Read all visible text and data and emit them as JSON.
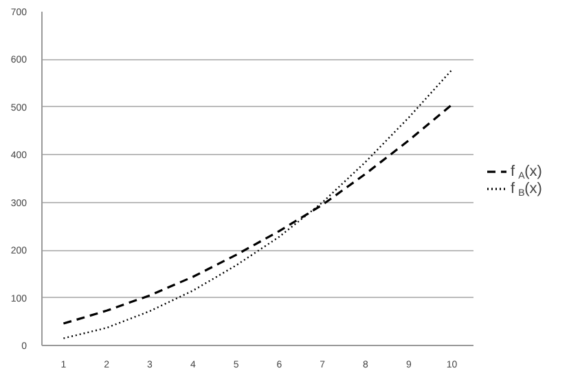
{
  "chart_data": {
    "type": "line",
    "categories": [
      "1",
      "2",
      "3",
      "4",
      "5",
      "6",
      "7",
      "8",
      "9",
      "10"
    ],
    "series": [
      {
        "name": "f$_{A}$(x)",
        "color": "#000000",
        "line_style": "dashed",
        "values": [
          46,
          73,
          105,
          144,
          190,
          240,
          295,
          360,
          430,
          505
        ]
      },
      {
        "name": "f$_{B}$(x)",
        "color": "#000000",
        "line_style": "dotted",
        "values": [
          15,
          37,
          72,
          115,
          168,
          228,
          300,
          385,
          478,
          578
        ]
      }
    ],
    "ylim": [
      0,
      700
    ],
    "yticks": [
      0,
      100,
      200,
      300,
      400,
      500,
      600,
      700
    ],
    "grid": "y",
    "legend": "right",
    "marker": "none"
  }
}
